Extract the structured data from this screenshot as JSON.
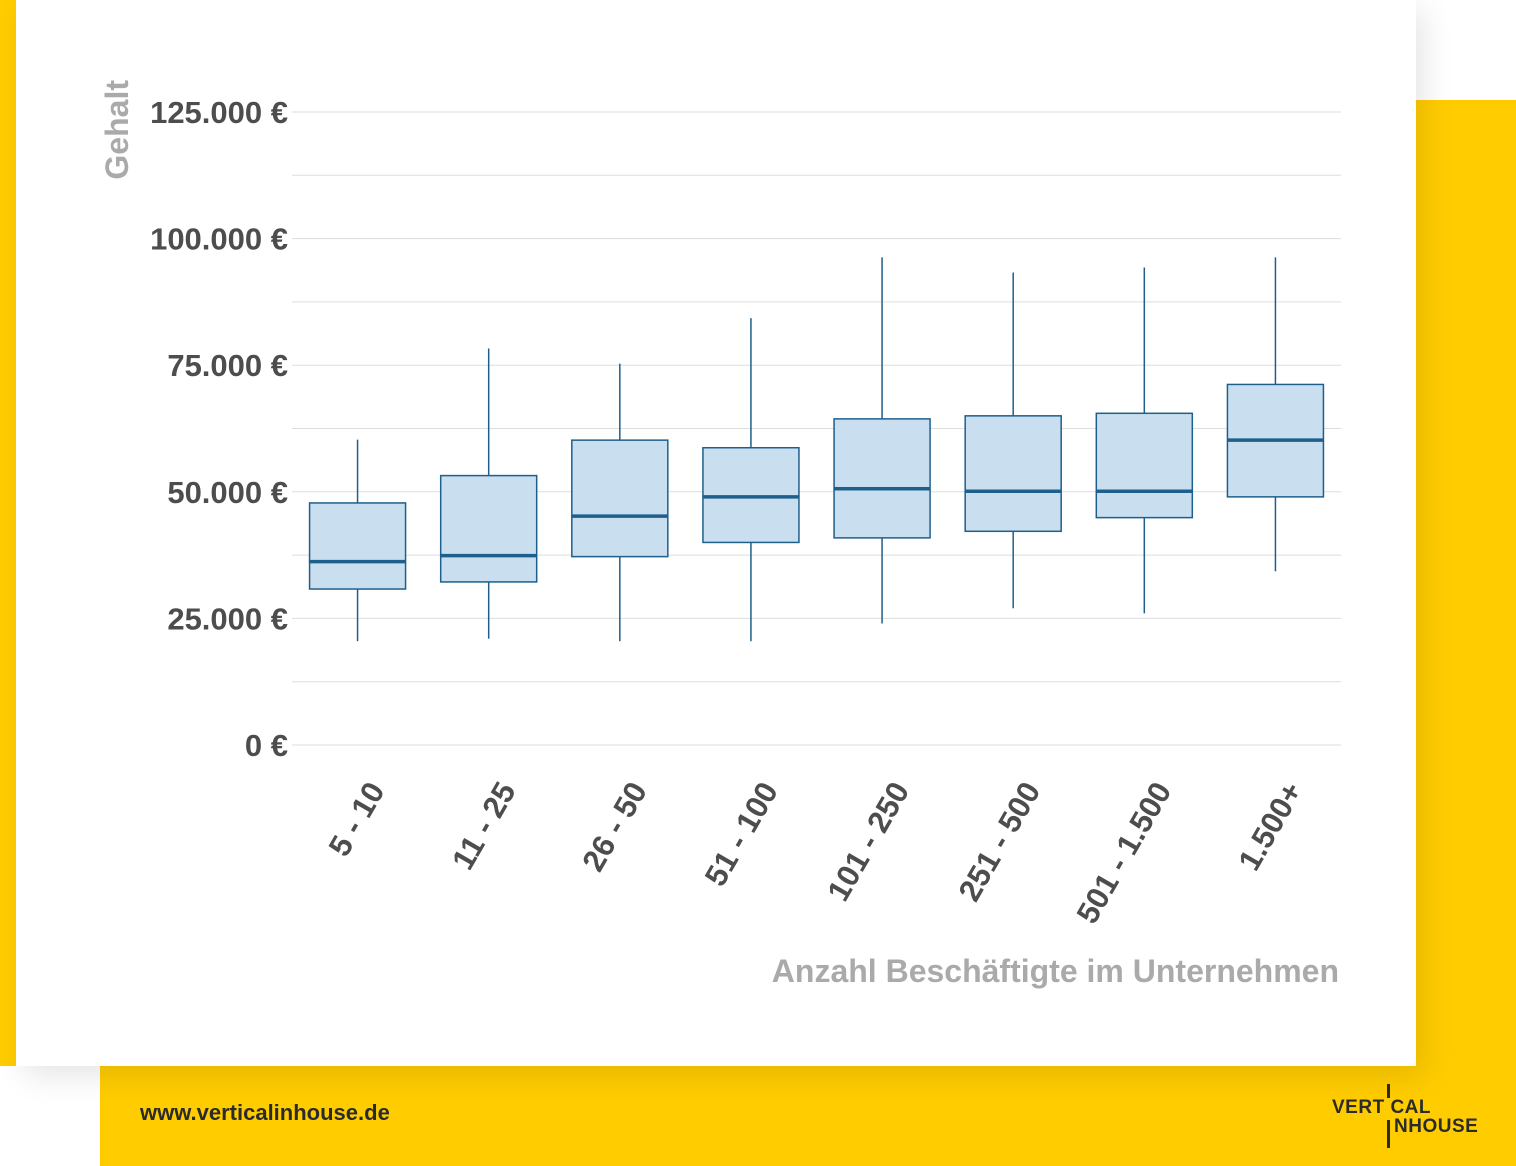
{
  "chart_data": {
    "type": "boxplot",
    "xlabel": "Anzahl Beschäftigte im Unternehmen",
    "ylabel": "Gehalt",
    "ylim": [
      0,
      125000
    ],
    "yticks": [
      0,
      25000,
      50000,
      75000,
      100000,
      125000
    ],
    "ytick_labels": [
      "0 €",
      "25.000 €",
      "50.000 €",
      "75.000 €",
      "100.000 €",
      "125.000 €"
    ],
    "grid": true,
    "categories": [
      "5 - 10",
      "11 - 25",
      "26 - 50",
      "51 - 100",
      "101 - 250",
      "251 - 500",
      "501 - 1.500",
      "1.500+"
    ],
    "boxes": [
      {
        "min": 20500,
        "q1": 30800,
        "median": 36200,
        "q3": 47800,
        "max": 60300
      },
      {
        "min": 21000,
        "q1": 32200,
        "median": 37400,
        "q3": 53200,
        "max": 78300
      },
      {
        "min": 20500,
        "q1": 37200,
        "median": 45200,
        "q3": 60200,
        "max": 75300
      },
      {
        "min": 20500,
        "q1": 40000,
        "median": 49000,
        "q3": 58700,
        "max": 84300
      },
      {
        "min": 24000,
        "q1": 40900,
        "median": 50600,
        "q3": 64400,
        "max": 96300
      },
      {
        "min": 27000,
        "q1": 42200,
        "median": 50100,
        "q3": 65000,
        "max": 93300
      },
      {
        "min": 26000,
        "q1": 44900,
        "median": 50100,
        "q3": 65500,
        "max": 94300
      },
      {
        "min": 34300,
        "q1": 49000,
        "median": 60200,
        "q3": 71200,
        "max": 96300
      }
    ],
    "colors": {
      "box_fill": "#C9DFF0",
      "box_stroke": "#1F5F8B",
      "grid": "#DDDDDD",
      "tick_text": "#4D4D4D",
      "axis_title": "#AAAAAA"
    }
  },
  "footer": {
    "url": "www.verticalinhouse.de",
    "logo_line1": "VERT CAL",
    "logo_line2": "NHOUSE"
  }
}
